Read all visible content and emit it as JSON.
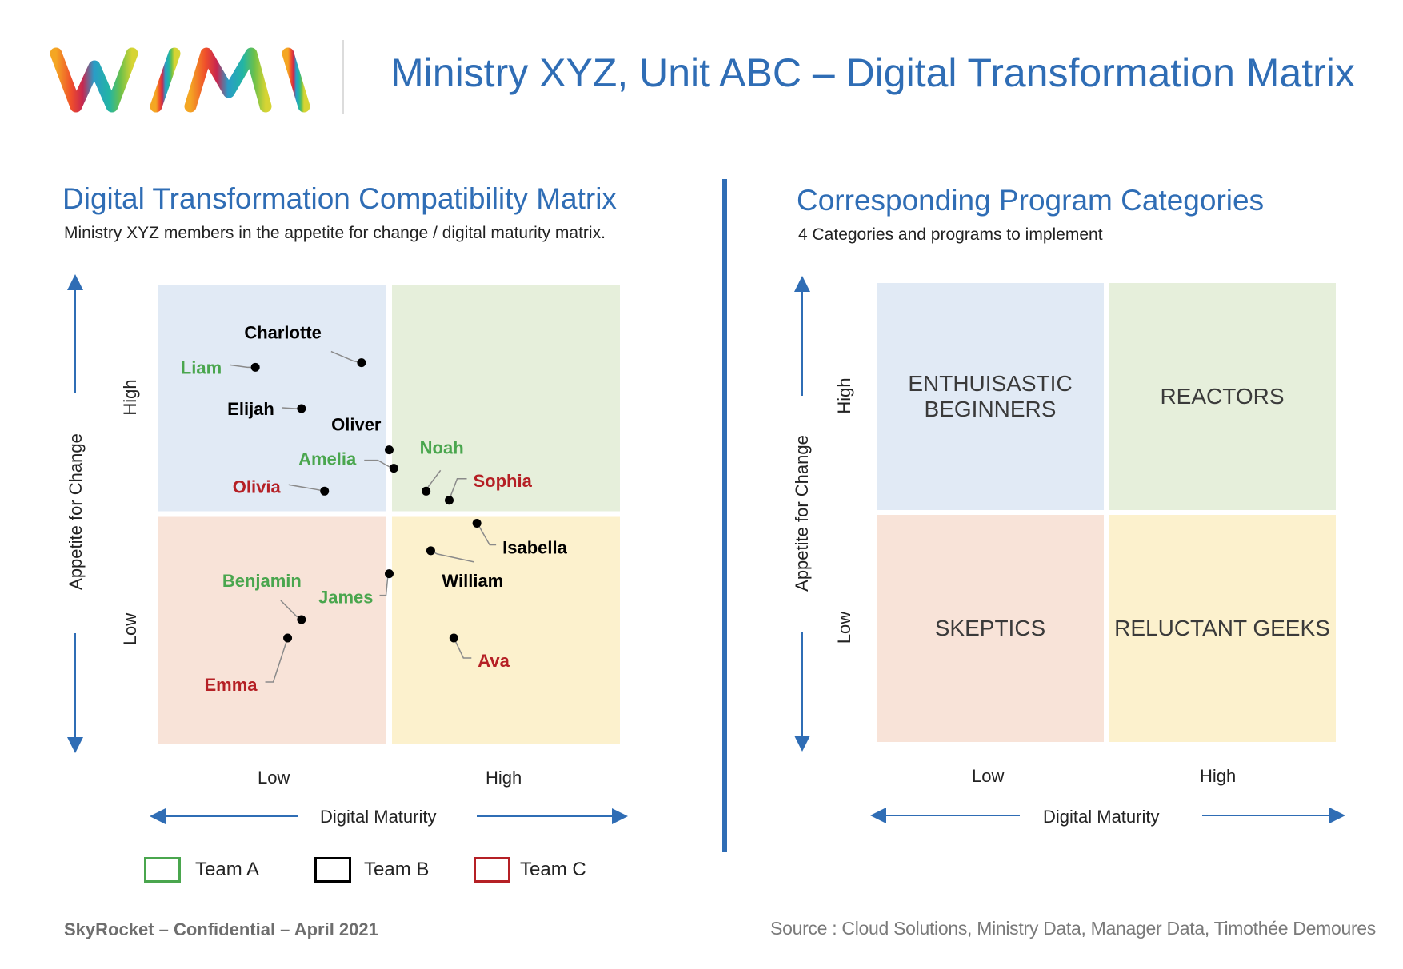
{
  "header": {
    "logo_text": "WIMI",
    "title": "Ministry XYZ, Unit ABC – Digital Transformation Matrix"
  },
  "left": {
    "title": "Digital Transformation Compatibility Matrix",
    "subtitle": "Ministry XYZ members in the appetite for change / digital maturity matrix."
  },
  "right": {
    "title": "Corresponding Program Categories",
    "subtitle": "4 Categories and programs to implement"
  },
  "axes": {
    "y_label": "Appetite for Change",
    "x_label": "Digital Maturity",
    "low": "Low",
    "high": "High"
  },
  "colors": {
    "q_top_left": "#e1eaf5",
    "q_top_right": "#e6efdb",
    "q_bottom_left": "#f8e3d8",
    "q_bottom_right": "#fcf1cd",
    "team_a": "#4aa64e",
    "team_b": "#000000",
    "team_c": "#b52025",
    "axis": "#2f6db5"
  },
  "categories": {
    "top_left": "ENTHUISASTIC BEGINNERS",
    "top_right": "REACTORS",
    "bottom_left": "SKEPTICS",
    "bottom_right": "RELUCTANT GEEKS"
  },
  "legend": [
    {
      "label": "Team A",
      "team": "A"
    },
    {
      "label": "Team B",
      "team": "B"
    },
    {
      "label": "Team C",
      "team": "C"
    }
  ],
  "footer": {
    "left": "SkyRocket – Confidential – April 2021",
    "right": "Source : Cloud Solutions, Ministry Data, Manager Data, Timothée Demoures"
  },
  "chart_data": {
    "type": "scatter",
    "x_axis": "Digital Maturity",
    "y_axis": "Appetite for Change",
    "xlim": [
      0,
      1
    ],
    "ylim": [
      0,
      1
    ],
    "quadrant_split": [
      0.5,
      0.5
    ],
    "points": [
      {
        "name": "Charlotte",
        "team": "B",
        "x": 0.44,
        "y": 0.83
      },
      {
        "name": "Liam",
        "team": "A",
        "x": 0.21,
        "y": 0.82
      },
      {
        "name": "Elijah",
        "team": "B",
        "x": 0.31,
        "y": 0.73
      },
      {
        "name": "Oliver",
        "team": "B",
        "x": 0.5,
        "y": 0.64
      },
      {
        "name": "Amelia",
        "team": "A",
        "x": 0.51,
        "y": 0.6
      },
      {
        "name": "Olivia",
        "team": "C",
        "x": 0.36,
        "y": 0.55
      },
      {
        "name": "Noah",
        "team": "A",
        "x": 0.58,
        "y": 0.55
      },
      {
        "name": "Sophia",
        "team": "C",
        "x": 0.63,
        "y": 0.53
      },
      {
        "name": "Isabella",
        "team": "B",
        "x": 0.69,
        "y": 0.48
      },
      {
        "name": "William",
        "team": "B",
        "x": 0.59,
        "y": 0.42
      },
      {
        "name": "James",
        "team": "A",
        "x": 0.5,
        "y": 0.37
      },
      {
        "name": "Benjamin",
        "team": "A",
        "x": 0.31,
        "y": 0.27
      },
      {
        "name": "Emma",
        "team": "C",
        "x": 0.28,
        "y": 0.23
      },
      {
        "name": "Ava",
        "team": "C",
        "x": 0.64,
        "y": 0.23
      }
    ]
  }
}
